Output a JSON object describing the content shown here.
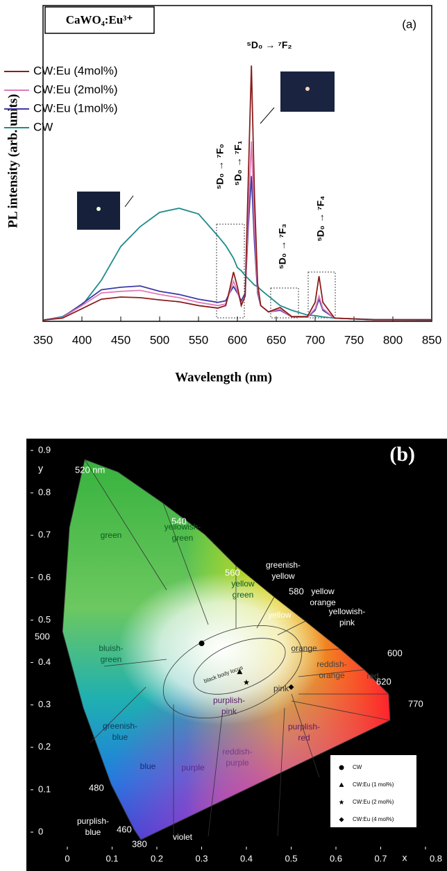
{
  "chart_data": [
    {
      "type": "line",
      "title": "CaWO₄:Eu³⁺",
      "panel_label": "(a)",
      "x_label": "Wavelength (nm)",
      "y_label": "PL intensity (arb. units)",
      "x": [
        350,
        375,
        400,
        425,
        450,
        475,
        500,
        525,
        550,
        575,
        585,
        590,
        595,
        600,
        605,
        610,
        614,
        618,
        622,
        626,
        630,
        640,
        655,
        670,
        690,
        700,
        705,
        710,
        725,
        775,
        850
      ],
      "series": [
        {
          "name": "CW:Eu (4mol%)",
          "color": "#8b1c1c",
          "values": [
            0.4,
            1,
            4,
            7,
            7.7,
            7.5,
            6.8,
            6.2,
            5,
            4.2,
            5,
            10,
            15.6,
            11,
            5,
            8,
            45,
            81,
            40,
            12,
            5,
            3,
            4.4,
            1.5,
            1.5,
            6,
            14.3,
            6,
            1,
            0.5,
            0.5
          ]
        },
        {
          "name": "CW:Eu (2mol%)",
          "color": "#e07ab8",
          "values": [
            0.4,
            1.2,
            5,
            9,
            9.5,
            9.8,
            8.5,
            7.5,
            6,
            5,
            5.5,
            9,
            12.7,
            9.5,
            5.5,
            8,
            35,
            57,
            30,
            10,
            5,
            3,
            3.8,
            1.4,
            1.3,
            4,
            8,
            4,
            1,
            0.5,
            0.5
          ]
        },
        {
          "name": "CW:Eu (1mol%)",
          "color": "#3a3aa8",
          "values": [
            0.4,
            1.3,
            5.5,
            10,
            10.8,
            11.2,
            9.5,
            8.5,
            7,
            6,
            6.5,
            9,
            11,
            9,
            6.5,
            9,
            30,
            46,
            25,
            9,
            5,
            3,
            3.5,
            1.4,
            1.3,
            3.5,
            7,
            3.5,
            1,
            0.5,
            0.5
          ]
        },
        {
          "name": "CW",
          "color": "#1e8a8a",
          "values": [
            0.4,
            1.5,
            5,
            13,
            23.7,
            30,
            34.5,
            35.8,
            34,
            27,
            24,
            22,
            20,
            17,
            16,
            14.5,
            13.5,
            12.5,
            11.5,
            11,
            10,
            8,
            5,
            3.5,
            2,
            1.8,
            1.6,
            1.4,
            1,
            0.6,
            0.4
          ]
        }
      ],
      "xlim": [
        350,
        850
      ],
      "ylim": [
        0,
        100
      ],
      "xticks": [
        350,
        400,
        450,
        500,
        550,
        600,
        650,
        700,
        750,
        800,
        850
      ],
      "annotations": [
        "⁵D₀ → ⁷F₂",
        "⁵D₀ → ⁷F₀",
        "⁵D₀ → ⁷F₁",
        "⁵D₀ → ⁷F₃",
        "⁵D₀ → ⁷F₄"
      ]
    },
    {
      "type": "scatter",
      "panel_label": "(b)",
      "x_label": "x",
      "y_label": "y",
      "xlim": [
        0,
        0.8
      ],
      "ylim": [
        0,
        0.9
      ],
      "xticks": [
        0,
        0.1,
        0.2,
        0.3,
        0.4,
        0.5,
        0.6,
        0.7,
        0.8
      ],
      "yticks": [
        0,
        0.1,
        0.2,
        0.3,
        0.4,
        0.5,
        0.6,
        0.7,
        0.8,
        0.9
      ],
      "series": [
        {
          "name": "CW",
          "marker": "circle",
          "color": "#000000",
          "x": [
            0.3
          ],
          "values": [
            0.445
          ]
        },
        {
          "name": "CW:Eu (1 mol%)",
          "marker": "triangle",
          "color": "#000000",
          "x": [
            0.385
          ],
          "values": [
            0.378
          ]
        },
        {
          "name": "CW:Eu (2 mol%)",
          "marker": "star",
          "color": "#000000",
          "x": [
            0.4
          ],
          "values": [
            0.353
          ]
        },
        {
          "name": "CW:Eu (4 mol%)",
          "marker": "diamond",
          "color": "#000000",
          "x": [
            0.5
          ],
          "values": [
            0.342
          ]
        }
      ],
      "wavelength_labels": [
        "520 nm",
        "540",
        "560",
        "580",
        "600",
        "620",
        "770",
        "500",
        "480",
        "460",
        "380"
      ],
      "region_labels": [
        [
          "green"
        ],
        [
          "yellowish-",
          "green"
        ],
        [
          "yellow",
          "green"
        ],
        [
          "greenish-",
          "yellow"
        ],
        [
          "yellow",
          "orange"
        ],
        [
          "yellow"
        ],
        [
          "yellowish-",
          "pink"
        ],
        [
          "orange"
        ],
        [
          "reddish-",
          "orange"
        ],
        [
          "red"
        ],
        [
          "pink"
        ],
        [
          "purplish-",
          "pink"
        ],
        [
          "purplish-",
          "red"
        ],
        [
          "reddish-",
          "purple"
        ],
        [
          "purple"
        ],
        [
          "blue"
        ],
        [
          "greenish-",
          "blue"
        ],
        [
          "bluish-",
          "green"
        ],
        [
          "purplish-",
          "blue"
        ],
        [
          "violet"
        ],
        [
          "black body locus"
        ]
      ]
    }
  ]
}
